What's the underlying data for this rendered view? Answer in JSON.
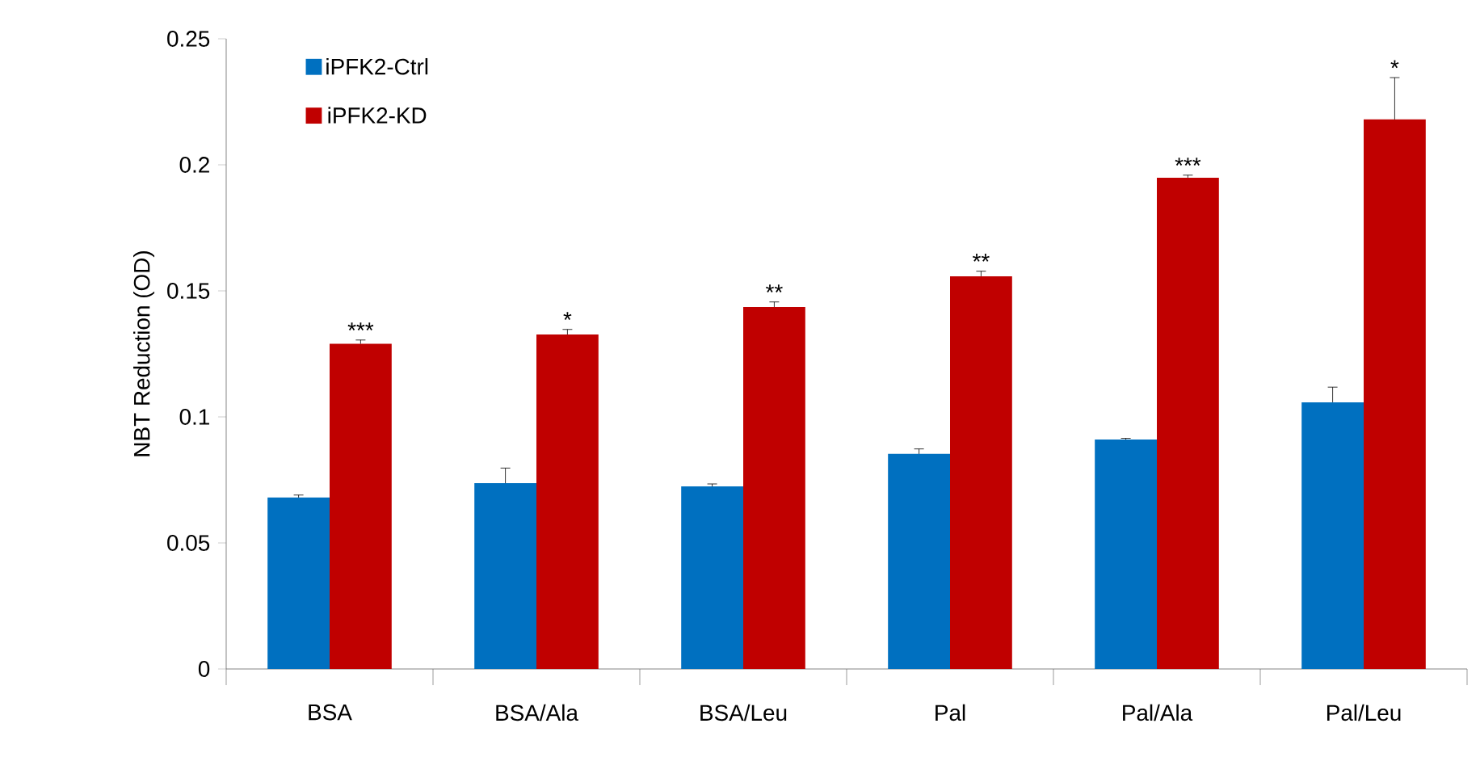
{
  "chart_data": {
    "type": "bar",
    "ylabel": "NBT Reduction (OD)",
    "categories": [
      "BSA",
      "BSA/Ala",
      "BSA/Leu",
      "Pal",
      "Pal/Ala",
      "Pal/Leu"
    ],
    "series": [
      {
        "name": "iPFK2-Ctrl",
        "color": "#0070c0",
        "values": [
          0.068,
          0.0737,
          0.0724,
          0.0853,
          0.091,
          0.1058
        ],
        "errors": [
          0.001,
          0.006,
          0.001,
          0.002,
          0.0005,
          0.006
        ]
      },
      {
        "name": "iPFK2-KD",
        "color": "#c00000",
        "values": [
          0.129,
          0.1327,
          0.1436,
          0.1558,
          0.1949,
          0.218
        ],
        "errors": [
          0.0015,
          0.002,
          0.002,
          0.002,
          0.001,
          0.0166
        ]
      }
    ],
    "ylim": [
      0,
      0.25
    ],
    "yticks": [
      0,
      0.05,
      0.1,
      0.15,
      0.2,
      0.25
    ],
    "annotations": [
      {
        "text": "***",
        "x": "BSA",
        "y": 0.129
      },
      {
        "text": "*",
        "x": "BSA/Ala",
        "y": 0.1327
      },
      {
        "text": "**",
        "x": "BSA/Leu",
        "y": 0.1436
      },
      {
        "text": "**",
        "x": "Pal",
        "y": 0.1558
      },
      {
        "text": "***",
        "x": "Pal/Ala",
        "y": 0.1949
      },
      {
        "text": "*",
        "x": "Pal/Leu",
        "y": 0.218
      }
    ],
    "legend": "top left",
    "grid": false
  }
}
